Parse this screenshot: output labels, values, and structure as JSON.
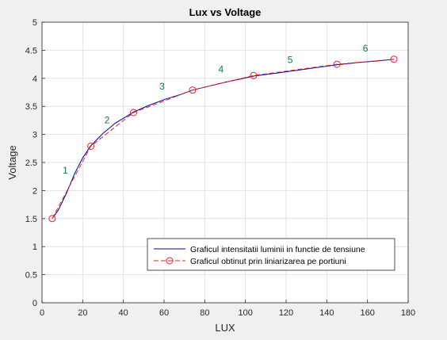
{
  "chart_data": {
    "type": "line",
    "title": "Lux vs Voltage",
    "xlabel": "LUX",
    "ylabel": "Voltage",
    "xlim": [
      0,
      180
    ],
    "ylim": [
      0,
      5
    ],
    "xticks": [
      0,
      20,
      40,
      60,
      80,
      100,
      120,
      140,
      160,
      180
    ],
    "yticks": [
      0,
      0.5,
      1,
      1.5,
      2,
      2.5,
      3,
      3.5,
      4,
      4.5,
      5
    ],
    "grid": true,
    "legend_position": "bottom-right",
    "series": [
      {
        "name": "Graficul intensitatii luminii in functie de tensiune",
        "style": "solid",
        "color": "#0000aa",
        "x": [
          5,
          8,
          12,
          16,
          20,
          24,
          30,
          36,
          42,
          45,
          52,
          60,
          68,
          74,
          82,
          90,
          98,
          104,
          115,
          125,
          135,
          145,
          155,
          165,
          173
        ],
        "y": [
          1.5,
          1.65,
          1.95,
          2.3,
          2.58,
          2.8,
          3.02,
          3.2,
          3.33,
          3.4,
          3.51,
          3.62,
          3.71,
          3.79,
          3.86,
          3.93,
          3.99,
          4.04,
          4.09,
          4.14,
          4.19,
          4.24,
          4.28,
          4.31,
          4.34
        ]
      },
      {
        "name": "Graficul obtinut prin liniarizarea pe portiuni",
        "style": "dashed",
        "marker": "circle",
        "color": "#e8202a",
        "x": [
          5,
          24,
          45,
          74,
          104,
          145,
          173
        ],
        "y": [
          1.5,
          2.79,
          3.39,
          3.79,
          4.05,
          4.25,
          4.34
        ]
      }
    ],
    "annotations": [
      {
        "text": "1",
        "x": 11.5,
        "y": 2.3
      },
      {
        "text": "2",
        "x": 32,
        "y": 3.2
      },
      {
        "text": "3",
        "x": 59,
        "y": 3.8
      },
      {
        "text": "4",
        "x": 88,
        "y": 4.1
      },
      {
        "text": "5",
        "x": 122,
        "y": 4.27
      },
      {
        "text": "6",
        "x": 159,
        "y": 4.48
      }
    ],
    "annotation_color": "#0e7a4a"
  }
}
